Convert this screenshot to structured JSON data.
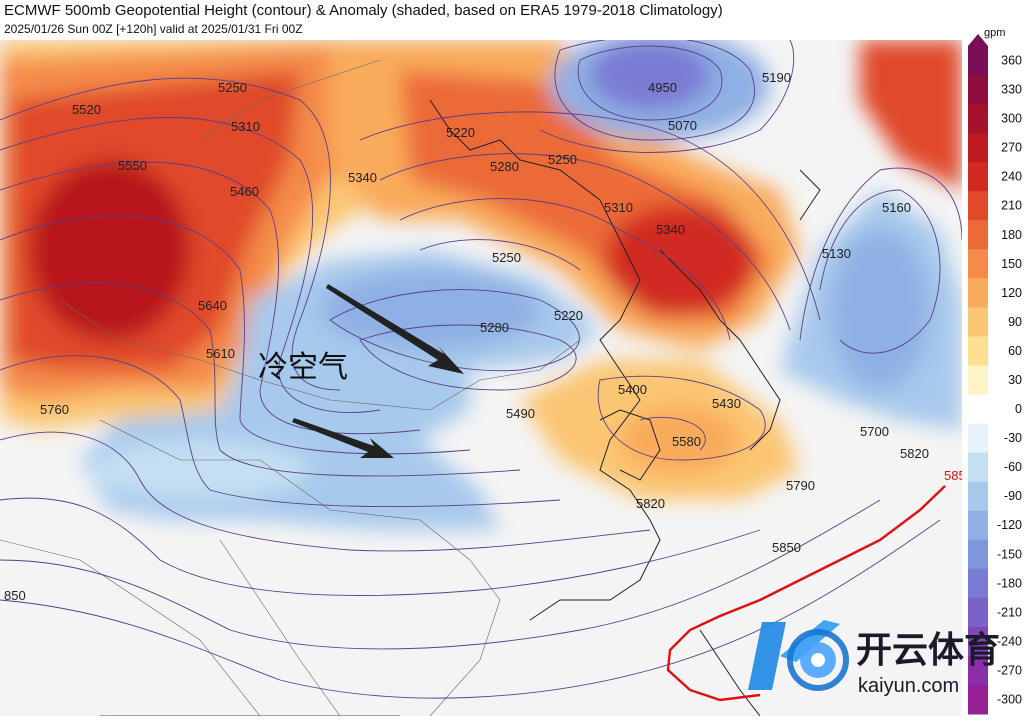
{
  "header": {
    "title": "ECMWF 500mb Geopotential Height (contour) & Anomaly (shaded, based on ERA5 1979-2018 Climatology)",
    "subtitle": "2025/01/26 Sun 00Z [+120h] valid at 2025/01/31 Fri 00Z"
  },
  "map": {
    "annotation": "冷空气",
    "contour_labels": [
      "5250",
      "5520",
      "5310",
      "5550",
      "5460",
      "5340",
      "5640",
      "5610",
      "5760",
      "5220",
      "5280",
      "5250",
      "5310",
      "5340",
      "4950",
      "5070",
      "5190",
      "5160",
      "5130",
      "5250",
      "5220",
      "5280",
      "5400",
      "5430",
      "5490",
      "5580",
      "5700",
      "5820",
      "5790",
      "5850",
      "5820",
      "850",
      "585"
    ]
  },
  "colorbar": {
    "unit": "gpm",
    "ticks": [
      "360",
      "330",
      "300",
      "270",
      "240",
      "210",
      "180",
      "150",
      "120",
      "90",
      "60",
      "30",
      "0",
      "-30",
      "-60",
      "-90",
      "-120",
      "-150",
      "-180",
      "-210",
      "-240",
      "-270",
      "-300"
    ],
    "colors": [
      "#7a0f57",
      "#8e0e3e",
      "#a5112b",
      "#bd1a21",
      "#d12a22",
      "#e04a2b",
      "#ec6a38",
      "#f48b4a",
      "#f9ab5c",
      "#fbc673",
      "#fde08f",
      "#fff4c8",
      "#ffffff",
      "#e8f2fa",
      "#c4dff2",
      "#a7c9ec",
      "#8fb0e4",
      "#7f95dc",
      "#7a7bd3",
      "#7c61c8",
      "#8146b8",
      "#8a2fa6",
      "#962094"
    ]
  },
  "watermark": {
    "brand_cn": "开云体育",
    "brand_en": "kaiyun.com"
  }
}
